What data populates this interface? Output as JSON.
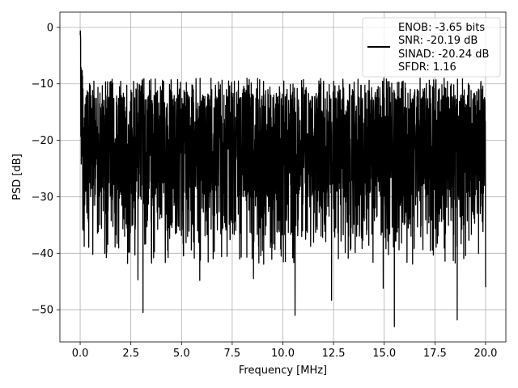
{
  "chart_data": {
    "type": "line",
    "title": "",
    "xlabel": "Frequency [MHz]",
    "ylabel": "PSD [dB]",
    "xlim": [
      -1,
      21
    ],
    "ylim": [
      -55.7,
      2.7
    ],
    "xticks": [
      0.0,
      2.5,
      5.0,
      7.5,
      10.0,
      12.5,
      15.0,
      17.5,
      20.0
    ],
    "xtick_labels": [
      "0.0",
      "2.5",
      "5.0",
      "7.5",
      "10.0",
      "12.5",
      "15.0",
      "17.5",
      "20.0"
    ],
    "yticks": [
      0,
      -10,
      -20,
      -30,
      -40,
      -50
    ],
    "ytick_labels": [
      "0",
      "−10",
      "−20",
      "−30",
      "−40",
      "−50"
    ],
    "grid": true,
    "legend_position": "top-right",
    "legend_lines": [
      "ENOB: -3.65 bits",
      "SNR: -20.19 dB",
      "SINAD: -20.24 dB",
      "SFDR: 1.16"
    ],
    "series": [
      {
        "color": "#000000",
        "x_start": 0.0,
        "x_end": 20.0,
        "peak_dB": 0.0,
        "typical_range_dB": [
          -30,
          -10
        ],
        "notable_minima": [
          {
            "x": 3.1,
            "y": -50.5
          },
          {
            "x": 10.6,
            "y": -51.0
          },
          {
            "x": 12.4,
            "y": -48.3
          },
          {
            "x": 15.5,
            "y": -53.0
          },
          {
            "x": 18.6,
            "y": -51.8
          },
          {
            "x": 2.85,
            "y": -44.7
          },
          {
            "x": 5.9,
            "y": -44.8
          },
          {
            "x": 8.55,
            "y": -44.5
          },
          {
            "x": 14.95,
            "y": -46.2
          },
          {
            "x": 20.0,
            "y": -46.0
          }
        ]
      }
    ]
  }
}
